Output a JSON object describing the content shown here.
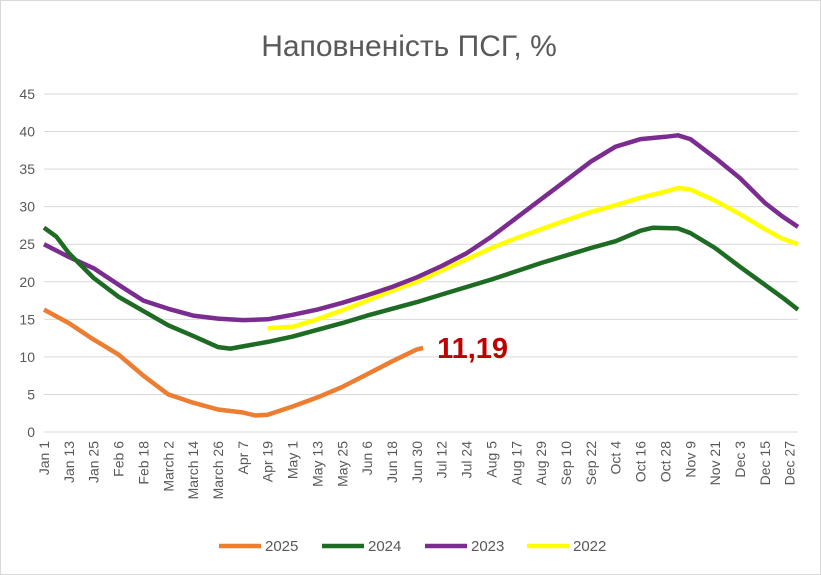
{
  "chart_data": {
    "type": "line",
    "title": "Наповненість ПСГ, %",
    "xlabel": "",
    "ylabel": "",
    "ylim": [
      0,
      45
    ],
    "yticks": [
      0,
      5,
      10,
      15,
      20,
      25,
      30,
      35,
      40,
      45
    ],
    "grid": true,
    "legend": "bottom",
    "x_tick_labels": [
      "Jan 1",
      "Jan 13",
      "Jan 25",
      "Feb 6",
      "Feb 18",
      "March 2",
      "March 14",
      "March 26",
      "Apr 7",
      "Apr 19",
      "May 1",
      "May 13",
      "May 25",
      "Jun 6",
      "Jun 18",
      "Jun 30",
      "Jul 12",
      "Jul 24",
      "Aug 5",
      "Aug 17",
      "Aug 29",
      "Sep 10",
      "Sep 22",
      "Oct 4",
      "Oct 16",
      "Oct 28",
      "Nov 9",
      "Nov 21",
      "Dec 3",
      "Dec 15",
      "Dec 27"
    ],
    "x_tick_days": [
      1,
      13,
      25,
      37,
      49,
      61,
      73,
      85,
      97,
      109,
      121,
      133,
      145,
      157,
      169,
      181,
      193,
      205,
      217,
      229,
      241,
      253,
      265,
      277,
      289,
      301,
      313,
      325,
      337,
      349,
      361
    ],
    "x_domain": [
      1,
      365
    ],
    "x_note": "x values are day of year (Jan 1 = 1)",
    "series": [
      {
        "name": "2025",
        "color": "#ed7d31",
        "points": [
          [
            1,
            16.3
          ],
          [
            13,
            14.5
          ],
          [
            25,
            12.3
          ],
          [
            37,
            10.3
          ],
          [
            49,
            7.5
          ],
          [
            61,
            5.0
          ],
          [
            73,
            3.9
          ],
          [
            85,
            3.0
          ],
          [
            97,
            2.6
          ],
          [
            103,
            2.2
          ],
          [
            109,
            2.3
          ],
          [
            121,
            3.4
          ],
          [
            133,
            4.6
          ],
          [
            145,
            6.0
          ],
          [
            157,
            7.7
          ],
          [
            169,
            9.4
          ],
          [
            181,
            11.0
          ],
          [
            184,
            11.19
          ]
        ]
      },
      {
        "name": "2024",
        "color": "#1e6b23",
        "points": [
          [
            1,
            27.2
          ],
          [
            7,
            26.0
          ],
          [
            13,
            23.8
          ],
          [
            25,
            20.5
          ],
          [
            37,
            18.0
          ],
          [
            49,
            16.1
          ],
          [
            61,
            14.2
          ],
          [
            73,
            12.8
          ],
          [
            85,
            11.3
          ],
          [
            91,
            11.1
          ],
          [
            97,
            11.4
          ],
          [
            109,
            12.0
          ],
          [
            121,
            12.7
          ],
          [
            133,
            13.6
          ],
          [
            145,
            14.5
          ],
          [
            157,
            15.5
          ],
          [
            169,
            16.4
          ],
          [
            181,
            17.3
          ],
          [
            193,
            18.3
          ],
          [
            205,
            19.3
          ],
          [
            217,
            20.3
          ],
          [
            229,
            21.4
          ],
          [
            241,
            22.5
          ],
          [
            253,
            23.5
          ],
          [
            265,
            24.5
          ],
          [
            277,
            25.4
          ],
          [
            289,
            26.8
          ],
          [
            295,
            27.2
          ],
          [
            307,
            27.1
          ],
          [
            313,
            26.5
          ],
          [
            325,
            24.5
          ],
          [
            337,
            22.0
          ],
          [
            349,
            19.6
          ],
          [
            358,
            17.8
          ],
          [
            365,
            16.3
          ]
        ]
      },
      {
        "name": "2023",
        "color": "#7b2c90",
        "points": [
          [
            1,
            25.0
          ],
          [
            13,
            23.3
          ],
          [
            25,
            21.8
          ],
          [
            37,
            19.6
          ],
          [
            49,
            17.5
          ],
          [
            61,
            16.4
          ],
          [
            73,
            15.5
          ],
          [
            85,
            15.1
          ],
          [
            97,
            14.9
          ],
          [
            109,
            15.0
          ],
          [
            121,
            15.6
          ],
          [
            133,
            16.3
          ],
          [
            145,
            17.2
          ],
          [
            157,
            18.2
          ],
          [
            169,
            19.3
          ],
          [
            181,
            20.6
          ],
          [
            193,
            22.1
          ],
          [
            205,
            23.8
          ],
          [
            217,
            26.0
          ],
          [
            229,
            28.5
          ],
          [
            241,
            31.0
          ],
          [
            253,
            33.5
          ],
          [
            265,
            36.0
          ],
          [
            277,
            38.0
          ],
          [
            289,
            39.0
          ],
          [
            301,
            39.3
          ],
          [
            307,
            39.5
          ],
          [
            313,
            39.0
          ],
          [
            325,
            36.5
          ],
          [
            337,
            33.8
          ],
          [
            349,
            30.5
          ],
          [
            357,
            28.8
          ],
          [
            365,
            27.3
          ]
        ]
      },
      {
        "name": "2022",
        "color": "#ffff00",
        "points": [
          [
            109,
            13.8
          ],
          [
            121,
            14.0
          ],
          [
            133,
            15.0
          ],
          [
            145,
            16.2
          ],
          [
            157,
            17.5
          ],
          [
            169,
            18.8
          ],
          [
            181,
            20.0
          ],
          [
            193,
            21.5
          ],
          [
            205,
            23.0
          ],
          [
            217,
            24.5
          ],
          [
            229,
            25.8
          ],
          [
            241,
            27.0
          ],
          [
            253,
            28.2
          ],
          [
            265,
            29.3
          ],
          [
            277,
            30.2
          ],
          [
            289,
            31.2
          ],
          [
            301,
            32.0
          ],
          [
            307,
            32.5
          ],
          [
            313,
            32.3
          ],
          [
            325,
            30.8
          ],
          [
            337,
            29.0
          ],
          [
            349,
            27.0
          ],
          [
            357,
            25.8
          ],
          [
            365,
            25.0
          ]
        ]
      }
    ],
    "legend_order": [
      "2025",
      "2024",
      "2023",
      "2022"
    ],
    "annotations": [
      {
        "text": "11,19",
        "series": "2025",
        "x": 184,
        "y": 11.19,
        "color": "#c00000"
      }
    ]
  }
}
